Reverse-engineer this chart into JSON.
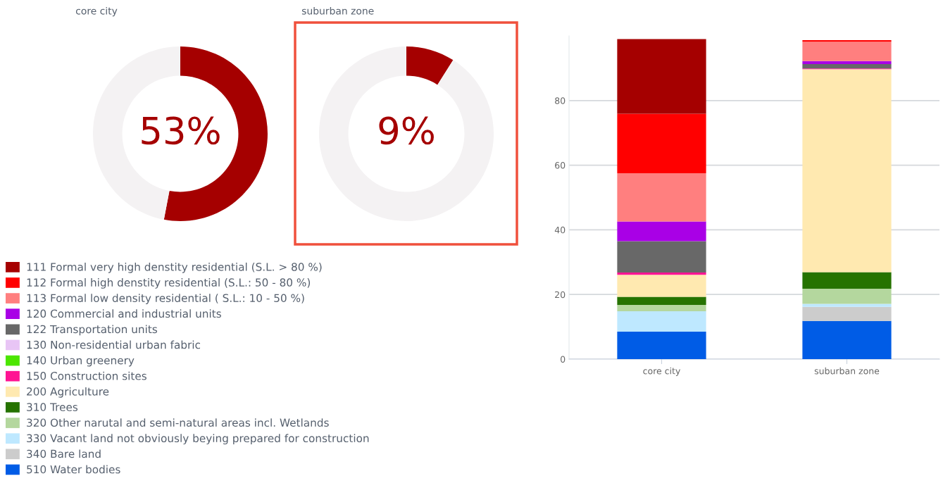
{
  "chart_data": [
    {
      "type": "donut",
      "title": "core city",
      "categories": [
        null,
        null
      ],
      "values": [
        53,
        47
      ],
      "colors": [
        "#a50000",
        "#f4f2f3"
      ],
      "annotations": [
        "53%"
      ]
    },
    {
      "type": "donut",
      "title": "suburban zone",
      "categories": [
        null,
        null
      ],
      "values": [
        9,
        91
      ],
      "colors": [
        "#a50000",
        "#f4f2f3"
      ],
      "annotations": [
        "9%"
      ]
    },
    {
      "type": "bar",
      "stacked": true,
      "categories": [
        "core city",
        "suburban zone"
      ],
      "ylim": [
        0,
        100
      ],
      "yticks": [
        0,
        20,
        40,
        60,
        80
      ],
      "grid": "y",
      "legend": "bottom left",
      "series": [
        {
          "name": "510 Water bodies",
          "color": "#005ce6",
          "values": [
            8.5,
            11.8
          ]
        },
        {
          "name": "340 Bare land",
          "color": "#cccccc",
          "values": [
            0,
            4.4
          ]
        },
        {
          "name": "330 Vacant land not obviously beying prepared for construction",
          "color": "#bee8ff",
          "values": [
            6.3,
            0.9
          ]
        },
        {
          "name": "320 Other narutal and semi-natural areas incl. Wetlands",
          "color": "#b4d79e",
          "values": [
            2.0,
            4.7
          ]
        },
        {
          "name": "310 Trees",
          "color": "#267300",
          "values": [
            2.5,
            5.1
          ]
        },
        {
          "name": "200 Agriculture",
          "color": "#ffe9b0",
          "values": [
            6.8,
            62.8
          ]
        },
        {
          "name": "150 Construction sites",
          "color": "#ff1493",
          "values": [
            0.7,
            0.2
          ]
        },
        {
          "name": "140 Urban greenery",
          "color": "#4ce600",
          "values": [
            0,
            0
          ]
        },
        {
          "name": "130 Non-residential urban fabric",
          "color": "#e8c5f5",
          "values": [
            0,
            0
          ]
        },
        {
          "name": "122 Transportation units",
          "color": "#686868",
          "values": [
            9.7,
            1.4
          ]
        },
        {
          "name": "120 Commercial and industrial units",
          "color": "#a900e6",
          "values": [
            6.1,
            0.9
          ]
        },
        {
          "name": "113 Formal low density residential ( S.L.: 10 - 50 %)",
          "color": "#ff7f7f",
          "values": [
            14.9,
            6.0
          ]
        },
        {
          "name": "112 Formal high denstity residential (S.L.: 50 - 80 %)",
          "color": "#ff0000",
          "values": [
            18.4,
            0.5
          ]
        },
        {
          "name": "111 Formal very high denstity residential (S.L. > 80 %)",
          "color": "#a50000",
          "values": [
            23.1,
            0.0
          ]
        }
      ]
    }
  ]
}
